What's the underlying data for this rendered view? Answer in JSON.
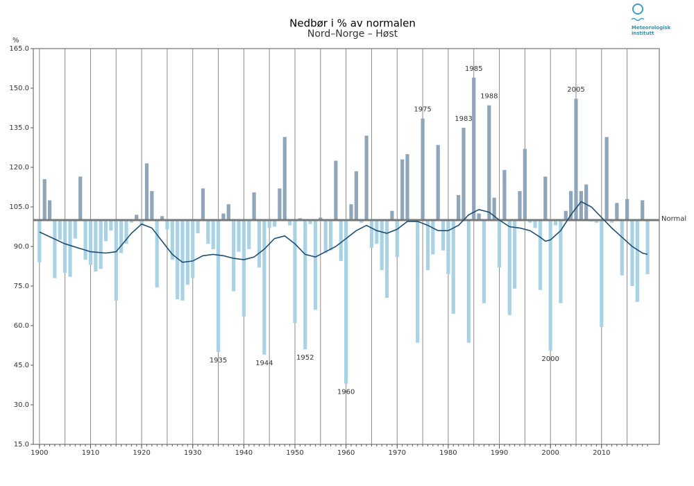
{
  "chart_data": {
    "type": "bar",
    "title": "Nedbør i % av normalen",
    "subtitle": "Nord–Norge – Høst",
    "ylabel": "%",
    "logo": [
      "Meteorologisk",
      "institutt"
    ],
    "x": [
      1900,
      1901,
      1902,
      1903,
      1904,
      1905,
      1906,
      1907,
      1908,
      1909,
      1910,
      1911,
      1912,
      1913,
      1914,
      1915,
      1916,
      1917,
      1918,
      1919,
      1920,
      1921,
      1922,
      1923,
      1924,
      1925,
      1926,
      1927,
      1928,
      1929,
      1930,
      1931,
      1932,
      1933,
      1934,
      1935,
      1936,
      1937,
      1938,
      1939,
      1940,
      1941,
      1942,
      1943,
      1944,
      1945,
      1946,
      1947,
      1948,
      1949,
      1950,
      1951,
      1952,
      1953,
      1954,
      1955,
      1956,
      1957,
      1958,
      1959,
      1960,
      1961,
      1962,
      1963,
      1964,
      1965,
      1966,
      1967,
      1968,
      1969,
      1970,
      1971,
      1972,
      1973,
      1974,
      1975,
      1976,
      1977,
      1978,
      1979,
      1980,
      1981,
      1982,
      1983,
      1984,
      1985,
      1986,
      1987,
      1988,
      1989,
      1990,
      1991,
      1992,
      1993,
      1994,
      1995,
      1996,
      1997,
      1998,
      1999,
      2000,
      2001,
      2002,
      2003,
      2004,
      2005,
      2006,
      2007,
      2008,
      2009,
      2010,
      2011,
      2012,
      2013,
      2014,
      2015,
      2016,
      2017,
      2018,
      2019
    ],
    "values": [
      84,
      115.5,
      107.5,
      78,
      92.5,
      80,
      78.5,
      93,
      116.5,
      85,
      83,
      80.5,
      81.5,
      92,
      96,
      69.5,
      87.5,
      91,
      99,
      102,
      98,
      121.5,
      111,
      74.5,
      101.5,
      96.5,
      85,
      70,
      69.5,
      75.5,
      78,
      95,
      112,
      91,
      89,
      50,
      102.5,
      106,
      73,
      88,
      63.5,
      89,
      110.5,
      82,
      49,
      97,
      97.5,
      112,
      131.5,
      98,
      61,
      100.7,
      51,
      98.5,
      66,
      101,
      87.5,
      88.5,
      122.5,
      84.5,
      38,
      106,
      118.5,
      99,
      132,
      89.5,
      91,
      81,
      70.5,
      103.5,
      86,
      123,
      125,
      99.5,
      53.5,
      138.5,
      81,
      87,
      128.5,
      88.5,
      79.5,
      64.5,
      109.5,
      135,
      53.5,
      154,
      102.5,
      68.5,
      143.5,
      108.5,
      82,
      119,
      64,
      74,
      111,
      127,
      99,
      97,
      73.5,
      116.5,
      50.5,
      98,
      68.5,
      103.5,
      111,
      146,
      111,
      113.5,
      99.5,
      99,
      59.5,
      131.5,
      99,
      106.5,
      79,
      108,
      75,
      69,
      107.5,
      79.5
    ],
    "color_above": "#8fa5ba",
    "color_below": "#a9d3e5",
    "reference_line": {
      "value": 100,
      "label": "Normal",
      "color": "#777777"
    },
    "smooth": {
      "color": "#1d4d70",
      "x": [
        1900,
        1905,
        1910,
        1913,
        1915,
        1918,
        1920,
        1922,
        1924,
        1926,
        1928,
        1930,
        1932,
        1934,
        1936,
        1938,
        1940,
        1942,
        1944,
        1946,
        1948,
        1950,
        1952,
        1954,
        1956,
        1958,
        1960,
        1962,
        1964,
        1966,
        1968,
        1970,
        1972,
        1974,
        1976,
        1978,
        1980,
        1982,
        1984,
        1986,
        1988,
        1990,
        1992,
        1994,
        1996,
        1998,
        1999,
        2000,
        2002,
        2004,
        2006,
        2008,
        2010,
        2012,
        2014,
        2016,
        2018,
        2019
      ],
      "y": [
        95.5,
        91,
        88,
        87.5,
        88,
        95,
        98.5,
        97,
        92,
        87,
        84,
        84.5,
        86.5,
        87,
        86.5,
        85.5,
        85,
        86,
        89,
        93,
        94,
        91,
        87,
        86,
        88,
        90,
        93,
        96,
        98,
        96,
        95,
        96.5,
        99.5,
        99.5,
        98,
        96,
        96,
        98,
        102,
        104,
        103,
        100,
        97.5,
        97,
        96,
        93.5,
        92,
        92.5,
        96,
        102,
        107,
        105,
        101,
        97,
        93.5,
        90,
        87.5,
        87
      ]
    },
    "annotations": [
      {
        "label": "1935",
        "x": 1935
      },
      {
        "label": "1944",
        "x": 1944
      },
      {
        "label": "1952",
        "x": 1952
      },
      {
        "label": "1960",
        "x": 1960
      },
      {
        "label": "1975",
        "x": 1975
      },
      {
        "label": "1983",
        "x": 1983
      },
      {
        "label": "1985",
        "x": 1985
      },
      {
        "label": "1988",
        "x": 1988
      },
      {
        "label": "2000",
        "x": 2000
      },
      {
        "label": "2005",
        "x": 2005
      }
    ],
    "xlim": [
      1898.8,
      2021.3
    ],
    "xticks": [
      1900,
      1910,
      1920,
      1930,
      1940,
      1950,
      1960,
      1970,
      1980,
      1990,
      2000,
      2010
    ],
    "x_grid": [
      1900,
      1905,
      1910,
      1915,
      1920,
      1925,
      1930,
      1935,
      1940,
      1945,
      1950,
      1955,
      1960,
      1965,
      1970,
      1975,
      1980,
      1985,
      1990,
      1995,
      2000,
      2005,
      2010,
      2015
    ],
    "ylim": [
      15,
      165
    ],
    "yticks": [
      {
        "value": 15,
        "label": "15.0"
      },
      {
        "value": 30,
        "label": "30.0"
      },
      {
        "value": 45,
        "label": "45.0"
      },
      {
        "value": 60,
        "label": "60.0"
      },
      {
        "value": 75,
        "label": "75.0"
      },
      {
        "value": 90,
        "label": "90.0"
      },
      {
        "value": 105,
        "label": "105.0"
      },
      {
        "value": 120,
        "label": "120.0"
      },
      {
        "value": 135,
        "label": "135.0"
      },
      {
        "value": 150,
        "label": "150.0"
      },
      {
        "value": 165,
        "label": "165.0"
      }
    ]
  }
}
